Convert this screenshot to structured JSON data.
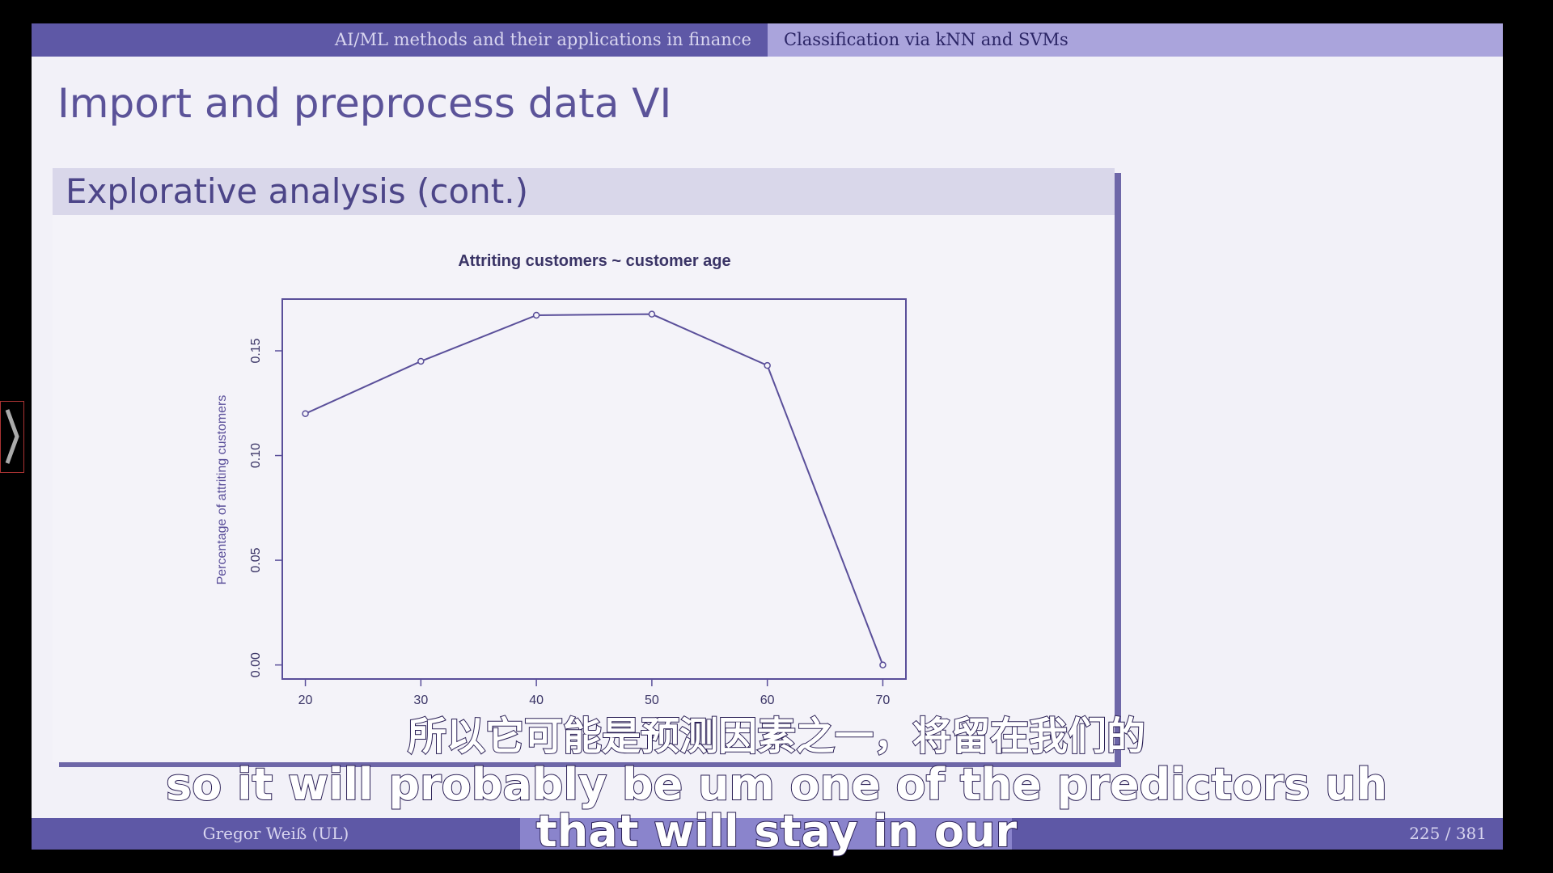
{
  "header": {
    "left": "AI/ML methods and their applications in finance",
    "right": "Classification via kNN and SVMs"
  },
  "slide_title": "Import and preprocess data VI",
  "block_title": "Explorative analysis (cont.)",
  "chart_data": {
    "type": "line",
    "title": "Attriting customers ~ customer age",
    "y_label": "Percentage of attriting customers",
    "x": [
      20,
      30,
      40,
      50,
      60,
      70
    ],
    "values": [
      0.12,
      0.145,
      0.167,
      0.1675,
      0.143,
      0.0
    ],
    "color": "#5a4f9a",
    "marker": "open-circle",
    "xlim": [
      18,
      72
    ],
    "ylim": [
      -0.0067,
      0.1747
    ],
    "xticks": [
      20,
      30,
      40,
      50,
      60,
      70
    ],
    "yticks": [
      {
        "value": 0,
        "label": "0.00"
      },
      {
        "value": 0.05,
        "label": "0.05"
      },
      {
        "value": 0.1,
        "label": "0.10"
      },
      {
        "value": 0.15,
        "label": "0.15"
      }
    ]
  },
  "footer": {
    "author": "Gregor Weiß (UL)",
    "page": "225 / 381"
  },
  "subtitles": {
    "zh": "所以它可能是预测因素之一，将留在我们的",
    "en": "so it will probably be um one of the predictors uh that will stay in our"
  }
}
